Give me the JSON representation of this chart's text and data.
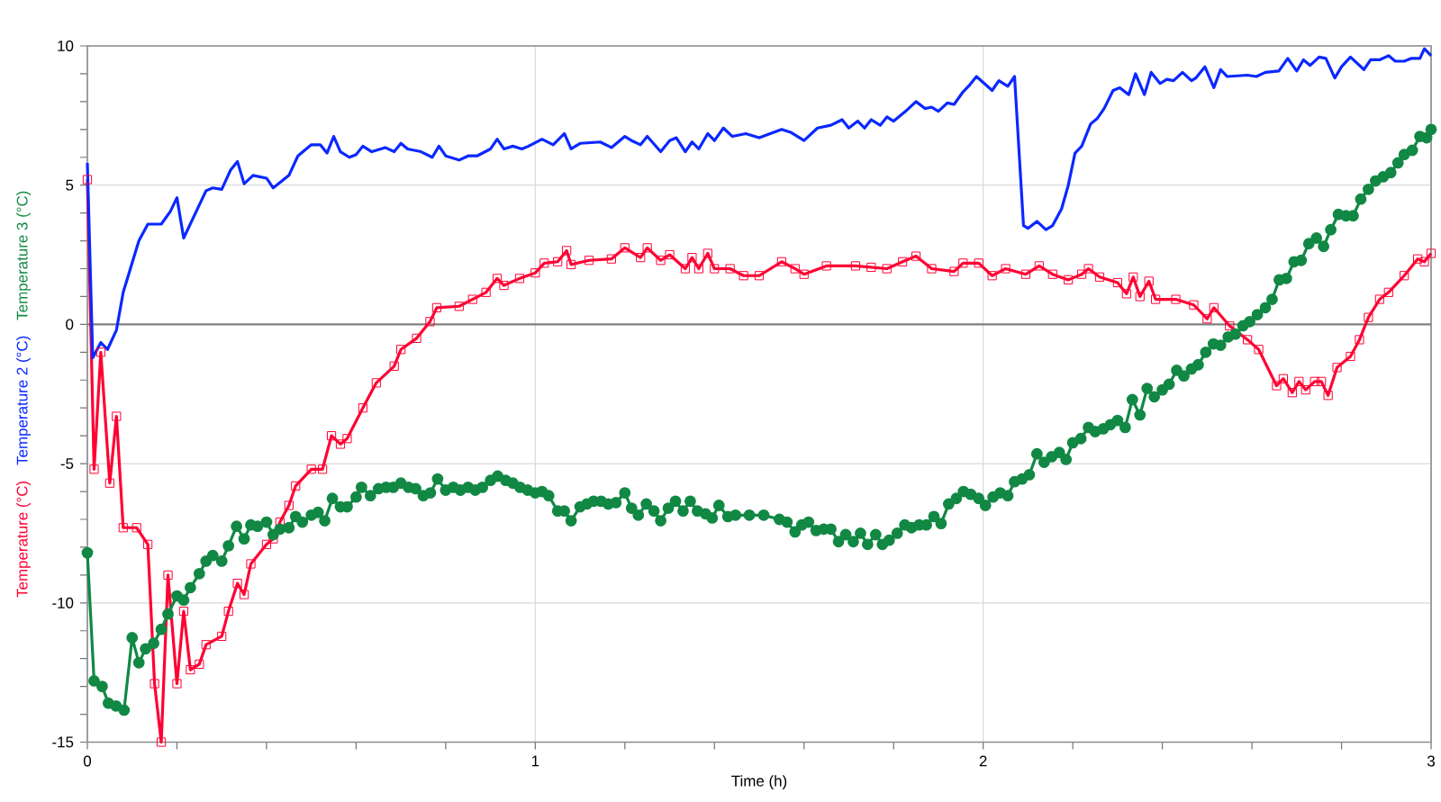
{
  "chart_data": {
    "type": "line",
    "xlabel": "Time (h)",
    "grid": true,
    "xlim": [
      0,
      3
    ],
    "ylim": [
      -15,
      10
    ],
    "xticks": [
      0,
      {
        "value": 0.2,
        "label": null
      },
      {
        "value": 0.4,
        "label": null
      },
      {
        "value": 0.6,
        "label": null
      },
      {
        "value": 0.8,
        "label": null
      },
      1,
      {
        "value": 1.2,
        "label": null
      },
      {
        "value": 1.4,
        "label": null
      },
      {
        "value": 1.6,
        "label": null
      },
      {
        "value": 1.8,
        "label": null
      },
      2,
      {
        "value": 2.2,
        "label": null
      },
      {
        "value": 2.4,
        "label": null
      },
      {
        "value": 2.6,
        "label": null
      },
      {
        "value": 2.8,
        "label": null
      },
      3
    ],
    "yticks": [
      -15,
      {
        "value": -14,
        "label": null
      },
      {
        "value": -13,
        "label": null
      },
      {
        "value": -12,
        "label": null
      },
      {
        "value": -11,
        "label": null
      },
      -10,
      {
        "value": -9,
        "label": null
      },
      {
        "value": -8,
        "label": null
      },
      {
        "value": -7,
        "label": null
      },
      {
        "value": -6,
        "label": null
      },
      -5,
      {
        "value": -4,
        "label": null
      },
      {
        "value": -3,
        "label": null
      },
      {
        "value": -2,
        "label": null
      },
      {
        "value": -1,
        "label": null
      },
      0,
      {
        "value": 1,
        "label": null
      },
      {
        "value": 2,
        "label": null
      },
      {
        "value": 3,
        "label": null
      },
      {
        "value": 4,
        "label": null
      },
      5,
      {
        "value": 6,
        "label": null
      },
      {
        "value": 7,
        "label": null
      },
      {
        "value": 8,
        "label": null
      },
      {
        "value": 9,
        "label": null
      },
      10
    ],
    "ref_lines": [
      {
        "axis": "y",
        "value": 0,
        "color": "#808080"
      }
    ],
    "series": [
      {
        "name": "Temperature (°C)",
        "color": "#ff0033",
        "marker": "square",
        "x": [
          0,
          0.015,
          0.03,
          0.05,
          0.065,
          0.08,
          0.11,
          0.135,
          0.15,
          0.165,
          0.18,
          0.2,
          0.215,
          0.23,
          0.25,
          0.265,
          0.3,
          0.315,
          0.335,
          0.35,
          0.365,
          0.4,
          0.415,
          0.43,
          0.45,
          0.465,
          0.5,
          0.525,
          0.545,
          0.565,
          0.58,
          0.615,
          0.645,
          0.685,
          0.7,
          0.735,
          0.765,
          0.78,
          0.83,
          0.86,
          0.89,
          0.915,
          0.93,
          0.965,
          1.0,
          1.02,
          1.05,
          1.07,
          1.08,
          1.12,
          1.17,
          1.2,
          1.235,
          1.25,
          1.28,
          1.3,
          1.335,
          1.35,
          1.365,
          1.385,
          1.4,
          1.435,
          1.465,
          1.5,
          1.55,
          1.58,
          1.6,
          1.65,
          1.715,
          1.75,
          1.785,
          1.82,
          1.85,
          1.885,
          1.935,
          1.955,
          1.99,
          2.02,
          2.05,
          2.095,
          2.125,
          2.155,
          2.19,
          2.22,
          2.235,
          2.26,
          2.3,
          2.32,
          2.335,
          2.35,
          2.37,
          2.385,
          2.43,
          2.47,
          2.5,
          2.515,
          2.55,
          2.59,
          2.615,
          2.655,
          2.67,
          2.69,
          2.705,
          2.72,
          2.74,
          2.755,
          2.77,
          2.79,
          2.82,
          2.84,
          2.86,
          2.885,
          2.905,
          2.94,
          2.97,
          2.985,
          3.0
        ],
        "values": [
          5.2,
          -5.2,
          -1.0,
          -5.7,
          -3.3,
          -7.3,
          -7.3,
          -7.9,
          -12.9,
          -15,
          -9.0,
          -12.9,
          -10.3,
          -12.4,
          -12.2,
          -11.5,
          -11.2,
          -10.3,
          -9.3,
          -9.7,
          -8.6,
          -7.9,
          -7.7,
          -7.1,
          -6.5,
          -5.8,
          -5.2,
          -5.2,
          -4.0,
          -4.3,
          -4.1,
          -3.0,
          -2.1,
          -1.5,
          -0.9,
          -0.5,
          0.1,
          0.6,
          0.65,
          0.9,
          1.15,
          1.65,
          1.4,
          1.65,
          1.85,
          2.2,
          2.25,
          2.65,
          2.15,
          2.3,
          2.35,
          2.75,
          2.4,
          2.75,
          2.3,
          2.5,
          2.0,
          2.4,
          2.0,
          2.55,
          2.0,
          2.0,
          1.75,
          1.75,
          2.25,
          2.0,
          1.8,
          2.1,
          2.1,
          2.05,
          2.0,
          2.25,
          2.45,
          2.0,
          1.9,
          2.2,
          2.2,
          1.75,
          2.0,
          1.8,
          2.1,
          1.8,
          1.6,
          1.8,
          2.0,
          1.7,
          1.5,
          1.1,
          1.7,
          1.0,
          1.55,
          0.9,
          0.9,
          0.7,
          0.2,
          0.6,
          -0.05,
          -0.55,
          -0.9,
          -2.2,
          -1.95,
          -2.45,
          -2.05,
          -2.35,
          -2.05,
          -2.05,
          -2.55,
          -1.55,
          -1.15,
          -0.55,
          0.25,
          0.9,
          1.15,
          1.75,
          2.35,
          2.25,
          2.55
        ]
      },
      {
        "name": "Temperature 2 (°C)",
        "color": "#0a28ff",
        "marker": "none",
        "x": [
          0,
          0.012,
          0.03,
          0.045,
          0.065,
          0.08,
          0.115,
          0.135,
          0.165,
          0.185,
          0.2,
          0.215,
          0.265,
          0.28,
          0.3,
          0.32,
          0.335,
          0.35,
          0.37,
          0.4,
          0.415,
          0.45,
          0.47,
          0.5,
          0.52,
          0.535,
          0.55,
          0.565,
          0.585,
          0.6,
          0.615,
          0.635,
          0.665,
          0.685,
          0.7,
          0.715,
          0.745,
          0.77,
          0.785,
          0.8,
          0.83,
          0.85,
          0.87,
          0.9,
          0.915,
          0.93,
          0.95,
          0.97,
          0.985,
          1.015,
          1.04,
          1.065,
          1.08,
          1.1,
          1.145,
          1.17,
          1.2,
          1.215,
          1.235,
          1.25,
          1.28,
          1.3,
          1.315,
          1.335,
          1.35,
          1.365,
          1.385,
          1.4,
          1.42,
          1.44,
          1.47,
          1.5,
          1.55,
          1.57,
          1.6,
          1.63,
          1.66,
          1.685,
          1.7,
          1.72,
          1.735,
          1.75,
          1.77,
          1.785,
          1.8,
          1.83,
          1.85,
          1.87,
          1.885,
          1.9,
          1.92,
          1.935,
          1.955,
          1.97,
          1.985,
          2.02,
          2.035,
          2.055,
          2.07,
          2.09,
          2.1,
          2.12,
          2.14,
          2.155,
          2.175,
          2.19,
          2.205,
          2.22,
          2.24,
          2.255,
          2.27,
          2.29,
          2.305,
          2.325,
          2.34,
          2.36,
          2.375,
          2.395,
          2.41,
          2.425,
          2.445,
          2.465,
          2.475,
          2.495,
          2.515,
          2.53,
          2.545,
          2.59,
          2.61,
          2.63,
          2.66,
          2.68,
          2.7,
          2.715,
          2.73,
          2.75,
          2.765,
          2.785,
          2.8,
          2.82,
          2.85,
          2.865,
          2.885,
          2.905,
          2.92,
          2.94,
          2.955,
          2.975,
          2.985,
          3.0
        ],
        "values": [
          5.8,
          -1.2,
          -0.65,
          -0.9,
          -0.2,
          1.15,
          3.0,
          3.6,
          3.6,
          4.05,
          4.55,
          3.1,
          4.8,
          4.9,
          4.85,
          5.55,
          5.85,
          5.05,
          5.35,
          5.25,
          4.9,
          5.35,
          6.05,
          6.45,
          6.45,
          6.15,
          6.75,
          6.2,
          6.0,
          6.1,
          6.4,
          6.2,
          6.35,
          6.2,
          6.5,
          6.3,
          6.2,
          6.0,
          6.4,
          6.05,
          5.9,
          6.05,
          6.05,
          6.3,
          6.65,
          6.3,
          6.4,
          6.3,
          6.4,
          6.65,
          6.45,
          6.85,
          6.3,
          6.5,
          6.55,
          6.35,
          6.75,
          6.6,
          6.45,
          6.75,
          6.2,
          6.6,
          6.7,
          6.2,
          6.55,
          6.3,
          6.85,
          6.6,
          7.05,
          6.75,
          6.85,
          6.7,
          7.0,
          6.9,
          6.6,
          7.05,
          7.15,
          7.35,
          7.05,
          7.3,
          7.05,
          7.35,
          7.15,
          7.45,
          7.3,
          7.7,
          8.0,
          7.75,
          7.8,
          7.65,
          7.95,
          7.9,
          8.35,
          8.6,
          8.9,
          8.4,
          8.75,
          8.55,
          8.9,
          3.55,
          3.45,
          3.7,
          3.4,
          3.55,
          4.15,
          5.0,
          6.15,
          6.4,
          7.2,
          7.4,
          7.75,
          8.4,
          8.5,
          8.25,
          9.0,
          8.25,
          9.05,
          8.65,
          8.8,
          8.75,
          9.05,
          8.75,
          8.85,
          9.25,
          8.5,
          9.15,
          8.9,
          8.95,
          8.9,
          9.05,
          9.1,
          9.55,
          9.1,
          9.5,
          9.3,
          9.6,
          9.55,
          8.85,
          9.25,
          9.6,
          9.15,
          9.5,
          9.5,
          9.65,
          9.45,
          9.45,
          9.55,
          9.55,
          9.9,
          9.65
        ]
      },
      {
        "name": "Temperature 3 (°C)",
        "color": "#118844",
        "marker": "circle",
        "x": [
          0,
          0.015,
          0.033,
          0.047,
          0.064,
          0.082,
          0.1,
          0.115,
          0.13,
          0.148,
          0.165,
          0.18,
          0.2,
          0.215,
          0.23,
          0.25,
          0.265,
          0.28,
          0.3,
          0.315,
          0.333,
          0.35,
          0.365,
          0.38,
          0.4,
          0.415,
          0.43,
          0.45,
          0.465,
          0.48,
          0.5,
          0.515,
          0.53,
          0.547,
          0.565,
          0.58,
          0.6,
          0.612,
          0.632,
          0.65,
          0.667,
          0.683,
          0.7,
          0.717,
          0.733,
          0.75,
          0.766,
          0.782,
          0.8,
          0.817,
          0.833,
          0.85,
          0.866,
          0.882,
          0.9,
          0.916,
          0.934,
          0.95,
          0.966,
          0.983,
          1.0,
          1.015,
          1.03,
          1.05,
          1.065,
          1.08,
          1.1,
          1.115,
          1.13,
          1.147,
          1.163,
          1.18,
          1.2,
          1.215,
          1.23,
          1.248,
          1.265,
          1.28,
          1.297,
          1.313,
          1.33,
          1.346,
          1.362,
          1.38,
          1.395,
          1.41,
          1.43,
          1.447,
          1.478,
          1.51,
          1.545,
          1.562,
          1.58,
          1.595,
          1.61,
          1.627,
          1.644,
          1.66,
          1.677,
          1.693,
          1.71,
          1.726,
          1.742,
          1.76,
          1.775,
          1.79,
          1.808,
          1.825,
          1.84,
          1.857,
          1.873,
          1.89,
          1.906,
          1.923,
          1.94,
          1.956,
          1.972,
          1.99,
          2.005,
          2.022,
          2.038,
          2.055,
          2.07,
          2.087,
          2.103,
          2.12,
          2.136,
          2.153,
          2.17,
          2.185,
          2.2,
          2.218,
          2.235,
          2.25,
          2.268,
          2.284,
          2.3,
          2.317,
          2.333,
          2.35,
          2.366,
          2.382,
          2.4,
          2.415,
          2.432,
          2.448,
          2.465,
          2.48,
          2.497,
          2.514,
          2.53,
          2.547,
          2.563,
          2.58,
          2.595,
          2.612,
          2.63,
          2.645,
          2.661,
          2.677,
          2.694,
          2.71,
          2.727,
          2.744,
          2.76,
          2.776,
          2.793,
          2.81,
          2.826,
          2.843,
          2.86,
          2.876,
          2.893,
          2.91,
          2.926,
          2.94,
          2.958,
          2.975,
          2.99,
          3.0
        ],
        "values": [
          -8.2,
          -12.8,
          -13.0,
          -13.6,
          -13.7,
          -13.85,
          -11.25,
          -12.15,
          -11.65,
          -11.45,
          -10.95,
          -10.4,
          -9.75,
          -9.9,
          -9.45,
          -8.95,
          -8.5,
          -8.3,
          -8.5,
          -7.95,
          -7.25,
          -7.7,
          -7.2,
          -7.25,
          -7.1,
          -7.55,
          -7.35,
          -7.3,
          -6.9,
          -7.1,
          -6.85,
          -6.75,
          -7.05,
          -6.25,
          -6.55,
          -6.55,
          -6.2,
          -5.85,
          -6.15,
          -5.9,
          -5.85,
          -5.85,
          -5.7,
          -5.85,
          -5.9,
          -6.15,
          -6.05,
          -5.55,
          -5.95,
          -5.85,
          -5.95,
          -5.85,
          -5.95,
          -5.85,
          -5.6,
          -5.45,
          -5.6,
          -5.7,
          -5.85,
          -5.95,
          -6.05,
          -6.0,
          -6.15,
          -6.7,
          -6.7,
          -7.05,
          -6.55,
          -6.45,
          -6.35,
          -6.35,
          -6.45,
          -6.4,
          -6.05,
          -6.6,
          -6.85,
          -6.45,
          -6.7,
          -7.05,
          -6.6,
          -6.35,
          -6.7,
          -6.35,
          -6.7,
          -6.8,
          -6.95,
          -6.5,
          -6.9,
          -6.85,
          -6.85,
          -6.85,
          -7.0,
          -7.1,
          -7.45,
          -7.2,
          -7.1,
          -7.4,
          -7.35,
          -7.35,
          -7.8,
          -7.55,
          -7.8,
          -7.5,
          -7.9,
          -7.55,
          -7.9,
          -7.75,
          -7.5,
          -7.2,
          -7.3,
          -7.2,
          -7.2,
          -6.9,
          -7.15,
          -6.45,
          -6.25,
          -6.0,
          -6.1,
          -6.25,
          -6.5,
          -6.2,
          -6.05,
          -6.15,
          -5.65,
          -5.55,
          -5.4,
          -4.65,
          -4.95,
          -4.75,
          -4.6,
          -4.85,
          -4.25,
          -4.1,
          -3.7,
          -3.85,
          -3.75,
          -3.6,
          -3.45,
          -3.7,
          -2.7,
          -3.25,
          -2.3,
          -2.6,
          -2.35,
          -2.15,
          -1.65,
          -1.85,
          -1.6,
          -1.45,
          -1.0,
          -0.7,
          -0.75,
          -0.45,
          -0.35,
          -0.05,
          0.1,
          0.35,
          0.6,
          0.9,
          1.6,
          1.65,
          2.25,
          2.3,
          2.9,
          3.1,
          2.8,
          3.4,
          3.95,
          3.9,
          3.9,
          4.5,
          4.85,
          5.15,
          5.3,
          5.45,
          5.8,
          6.1,
          6.25,
          6.75,
          6.7,
          7.0
        ]
      }
    ]
  }
}
